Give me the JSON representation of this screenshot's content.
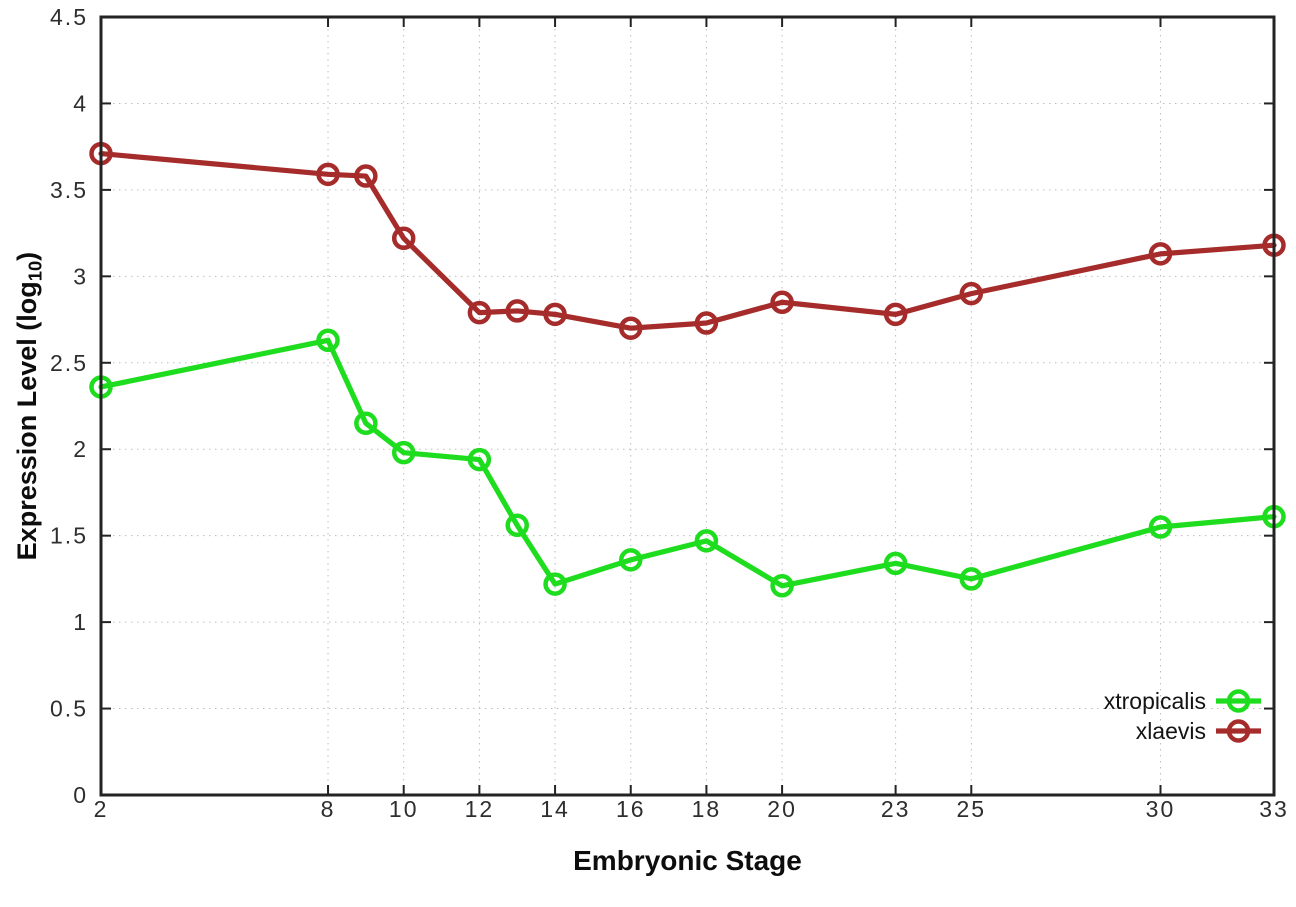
{
  "figure": {
    "x_axis_title": "Embryonic Stage",
    "y_axis_title_prefix": "Expression Level (log",
    "y_axis_title_sub": "10",
    "y_axis_title_suffix": ")"
  },
  "chart_data": {
    "type": "line",
    "title": "",
    "xlabel": "Embryonic Stage",
    "ylabel": "Expression Level (log10)",
    "x": [
      2,
      8,
      9,
      10,
      12,
      13,
      14,
      16,
      18,
      20,
      23,
      25,
      30,
      33
    ],
    "series": [
      {
        "name": "xtropicalis",
        "color": "#1edc1e",
        "values": [
          2.36,
          2.63,
          2.15,
          1.98,
          1.94,
          1.56,
          1.22,
          1.36,
          1.47,
          1.21,
          1.34,
          1.25,
          1.55,
          1.61
        ]
      },
      {
        "name": "xlaevis",
        "color": "#a52c2a",
        "values": [
          3.71,
          3.59,
          3.58,
          3.22,
          2.79,
          2.8,
          2.78,
          2.7,
          2.73,
          2.85,
          2.78,
          2.9,
          3.13,
          3.18
        ]
      }
    ],
    "xlim": [
      2,
      33
    ],
    "ylim": [
      0,
      4.5
    ],
    "xticks": {
      "values": [
        2,
        8,
        10,
        12,
        14,
        16,
        18,
        20,
        23,
        25,
        30,
        33
      ],
      "labels": [
        "2",
        "8",
        "10",
        "12",
        "14",
        "16",
        "18",
        "20",
        "23",
        "25",
        "30",
        "33"
      ]
    },
    "yticks": {
      "values": [
        0,
        0.5,
        1,
        1.5,
        2,
        2.5,
        3,
        3.5,
        4,
        4.5
      ],
      "labels": [
        "0",
        "0.5",
        "1",
        "1.5",
        "2",
        "2.5",
        "3",
        "3.5",
        "4",
        "4.5"
      ]
    },
    "grid": true,
    "marker": "open-circle",
    "legend_position": "inside-bottom-right",
    "legend_entries": [
      "xtropicalis",
      "xlaevis"
    ],
    "colors": {
      "grid": "#bdbdbd",
      "border": "#232323",
      "tick_label": "#2e2e2e"
    }
  }
}
